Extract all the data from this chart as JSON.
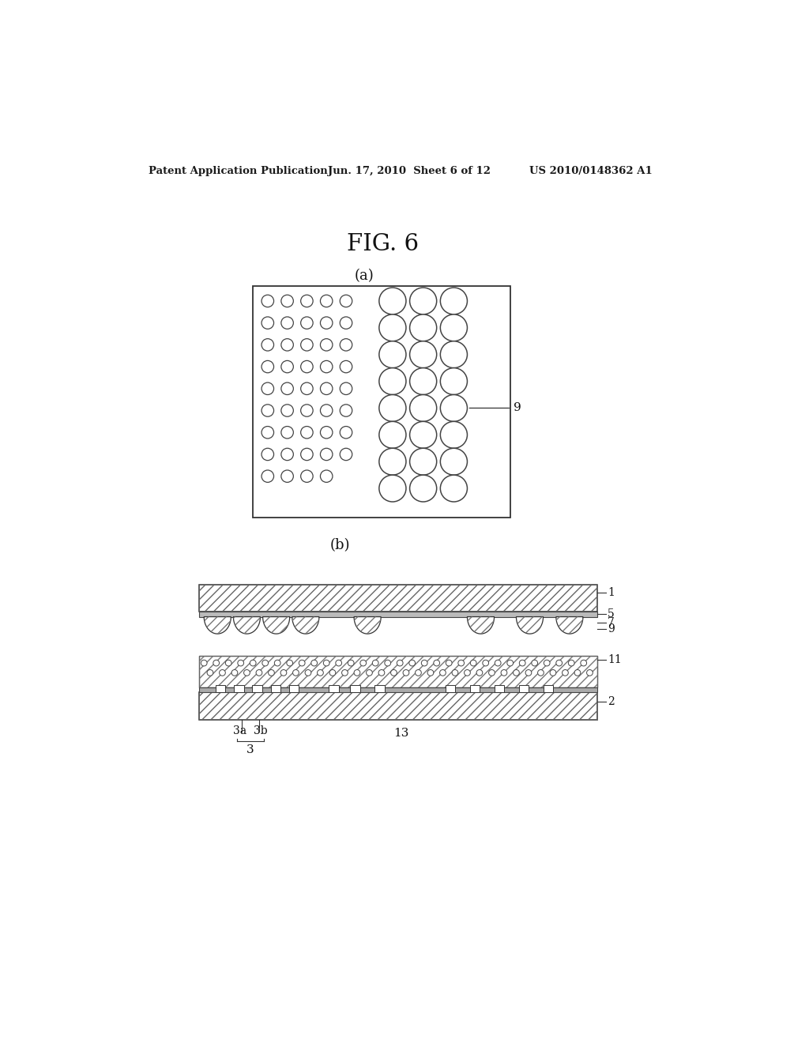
{
  "bg_color": "#ffffff",
  "header_left": "Patent Application Publication",
  "header_mid": "Jun. 17, 2010  Sheet 6 of 12",
  "header_right": "US 2010/0148362 A1",
  "fig_label": "FIG. 6",
  "sub_a": "(a)",
  "sub_b": "(b)",
  "label_1": "1",
  "label_2": "2",
  "label_3": "3",
  "label_3a": "3a",
  "label_3b": "3b",
  "label_5": "5",
  "label_7": "7",
  "label_9": "9",
  "label_11": "11",
  "label_13": "13"
}
